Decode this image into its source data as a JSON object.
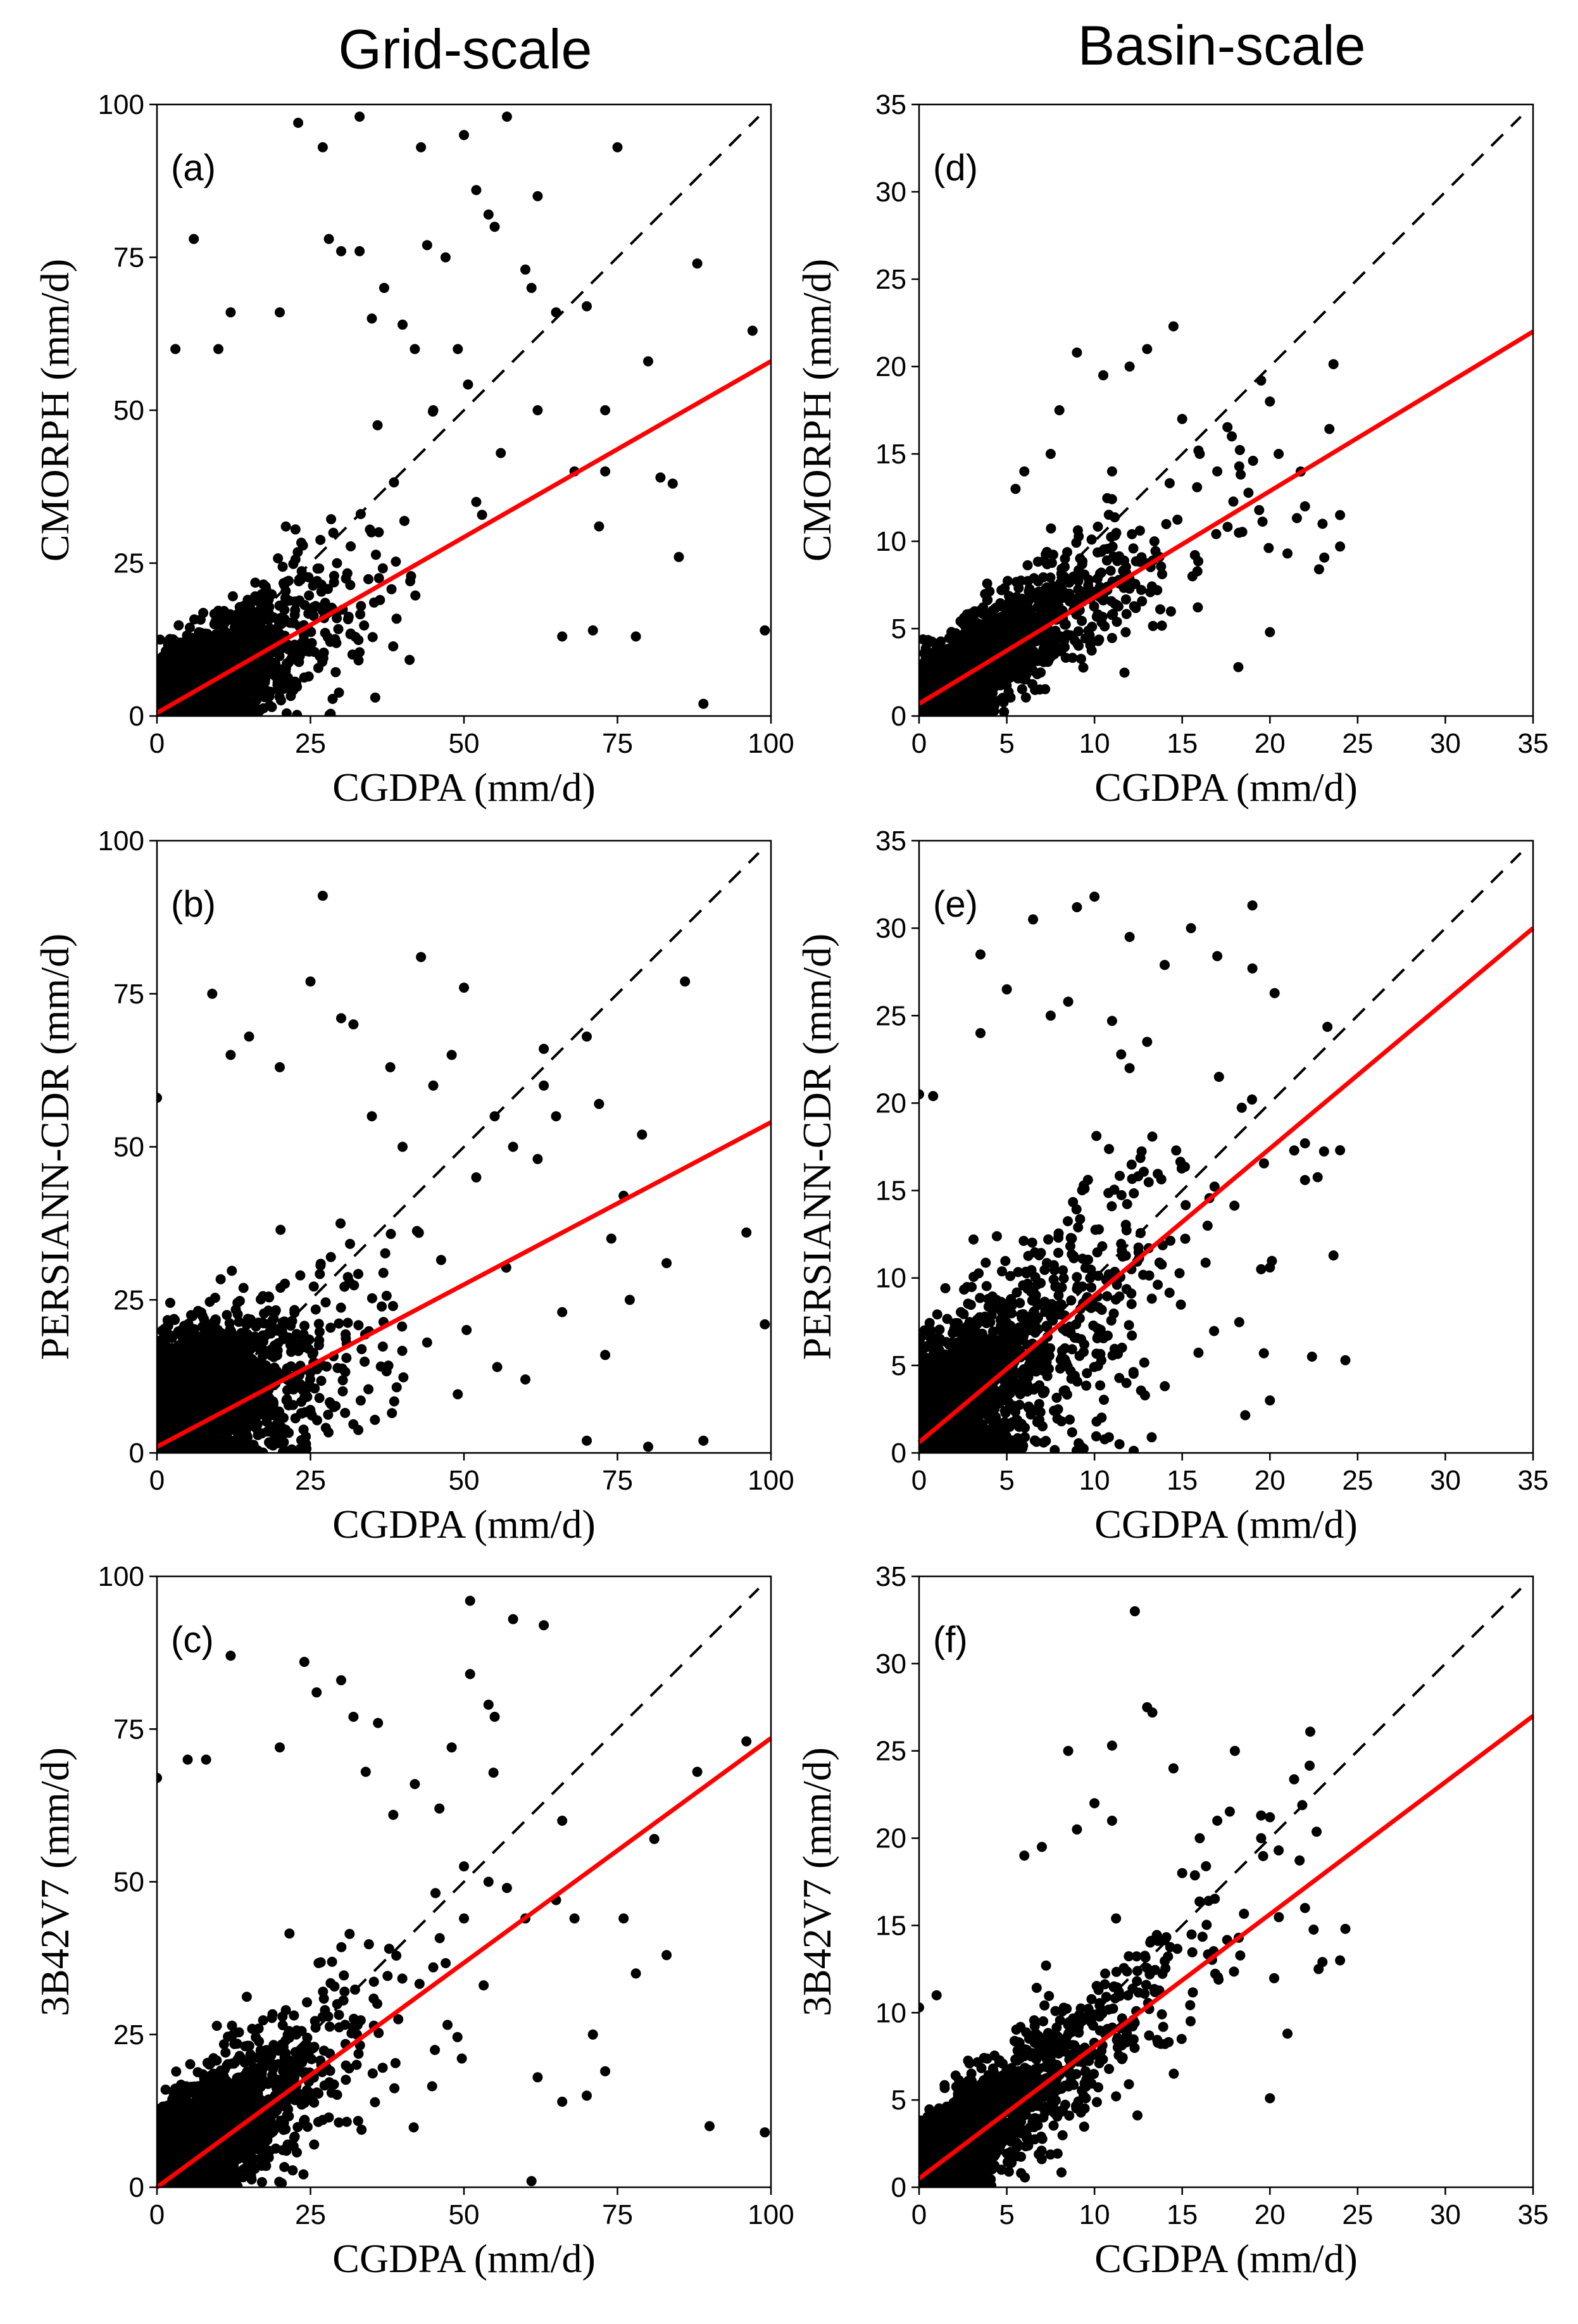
{
  "column_titles": {
    "left": "Grid-scale",
    "right": "Basin-scale"
  },
  "colors": {
    "points": "#000000",
    "fit_line": "#ff0000",
    "one_to_one": "#000000"
  },
  "chart_data": [
    {
      "id": "a",
      "type": "scatter",
      "panel_label": "(a)",
      "scale": "Grid-scale",
      "xlabel": "CGDPA (mm/d)",
      "ylabel": "CMORPH (mm/d)",
      "xlim": [
        0,
        100
      ],
      "ylim": [
        0,
        100
      ],
      "xticks": [
        0,
        25,
        50,
        75,
        100
      ],
      "yticks": [
        0,
        25,
        50,
        75,
        100
      ],
      "one_to_one_line": [
        [
          0,
          0
        ],
        [
          100,
          100
        ]
      ],
      "fit_line": [
        [
          0,
          0.5
        ],
        [
          100,
          58
        ]
      ],
      "cloud": {
        "n": 2600,
        "x_scale": 7.5,
        "x_max": 60,
        "slope": 0.58,
        "intercept": 0.5,
        "noise": 8.0
      },
      "outliers": [
        [
          23,
          97
        ],
        [
          33,
          98
        ],
        [
          50,
          95
        ],
        [
          57,
          98
        ],
        [
          75,
          93
        ],
        [
          27,
          93
        ],
        [
          43,
          93
        ],
        [
          52,
          86
        ],
        [
          54,
          82
        ],
        [
          55,
          80
        ],
        [
          62,
          85
        ],
        [
          88,
          74
        ],
        [
          97,
          63
        ],
        [
          99,
          14
        ],
        [
          89,
          2
        ],
        [
          72,
          31
        ],
        [
          73,
          40
        ],
        [
          80,
          58
        ],
        [
          82,
          39
        ],
        [
          84,
          38
        ],
        [
          60,
          73
        ],
        [
          65,
          66
        ],
        [
          70,
          67
        ],
        [
          44,
          77
        ],
        [
          28,
          78
        ],
        [
          30,
          76
        ],
        [
          33,
          76
        ],
        [
          47,
          75
        ],
        [
          6,
          78
        ],
        [
          12,
          66
        ],
        [
          20,
          66
        ],
        [
          40,
          64
        ],
        [
          35,
          65
        ],
        [
          66,
          13
        ],
        [
          71,
          14
        ],
        [
          78,
          13
        ],
        [
          85,
          26
        ],
        [
          61,
          70
        ],
        [
          37,
          70
        ],
        [
          42,
          60
        ],
        [
          49,
          60
        ],
        [
          56,
          43
        ],
        [
          62,
          50
        ],
        [
          68,
          40
        ],
        [
          73,
          50
        ],
        [
          10,
          60
        ],
        [
          3,
          60
        ],
        [
          45,
          50
        ],
        [
          52,
          35
        ]
      ]
    },
    {
      "id": "b",
      "type": "scatter",
      "panel_label": "(b)",
      "scale": "Grid-scale",
      "xlabel": "CGDPA (mm/d)",
      "ylabel": "PERSIANN-CDR (mm/d)",
      "xlim": [
        0,
        100
      ],
      "ylim": [
        0,
        100
      ],
      "xticks": [
        0,
        25,
        50,
        75,
        100
      ],
      "yticks": [
        0,
        25,
        50,
        75,
        100
      ],
      "one_to_one_line": [
        [
          0,
          0
        ],
        [
          100,
          100
        ]
      ],
      "fit_line": [
        [
          0,
          1
        ],
        [
          100,
          54
        ]
      ],
      "cloud": {
        "n": 2600,
        "x_scale": 7.5,
        "x_max": 60,
        "slope": 0.25,
        "intercept": 8.0,
        "noise": 9.0
      },
      "outliers": [
        [
          27,
          91
        ],
        [
          43,
          81
        ],
        [
          50,
          76
        ],
        [
          70,
          68
        ],
        [
          86,
          77
        ],
        [
          96,
          36
        ],
        [
          99,
          21
        ],
        [
          89,
          2
        ],
        [
          80,
          1
        ],
        [
          70,
          2
        ],
        [
          63,
          66
        ],
        [
          65,
          55
        ],
        [
          63,
          60
        ],
        [
          72,
          57
        ],
        [
          74,
          35
        ],
        [
          79,
          52
        ],
        [
          83,
          31
        ],
        [
          60,
          12
        ],
        [
          66,
          23
        ],
        [
          73,
          16
        ],
        [
          76,
          42
        ],
        [
          77,
          25
        ],
        [
          0,
          58
        ],
        [
          9,
          75
        ],
        [
          12,
          65
        ],
        [
          15,
          68
        ],
        [
          20,
          63
        ],
        [
          25,
          77
        ],
        [
          30,
          71
        ],
        [
          32,
          70
        ],
        [
          38,
          63
        ],
        [
          45,
          60
        ],
        [
          48,
          65
        ],
        [
          55,
          55
        ],
        [
          62,
          48
        ],
        [
          58,
          50
        ],
        [
          52,
          45
        ],
        [
          40,
          50
        ],
        [
          35,
          55
        ]
      ]
    },
    {
      "id": "c",
      "type": "scatter",
      "panel_label": "(c)",
      "scale": "Grid-scale",
      "xlabel": "CGDPA (mm/d)",
      "ylabel": "3B42V7 (mm/d)",
      "xlim": [
        0,
        100
      ],
      "ylim": [
        0,
        100
      ],
      "xticks": [
        0,
        25,
        50,
        75,
        100
      ],
      "yticks": [
        0,
        25,
        50,
        75,
        100
      ],
      "one_to_one_line": [
        [
          0,
          0
        ],
        [
          100,
          100
        ]
      ],
      "fit_line": [
        [
          0,
          0
        ],
        [
          100,
          73.5
        ]
      ],
      "cloud": {
        "n": 2600,
        "x_scale": 7.5,
        "x_max": 60,
        "slope": 0.7,
        "intercept": 2.0,
        "noise": 9.0
      },
      "outliers": [
        [
          51,
          96
        ],
        [
          58,
          93
        ],
        [
          63,
          92
        ],
        [
          51,
          84
        ],
        [
          24,
          86
        ],
        [
          30,
          83
        ],
        [
          26,
          81
        ],
        [
          32,
          77
        ],
        [
          36,
          76
        ],
        [
          54,
          79
        ],
        [
          55,
          77
        ],
        [
          48,
          72
        ],
        [
          96,
          73
        ],
        [
          88,
          68
        ],
        [
          81,
          57
        ],
        [
          83,
          38
        ],
        [
          78,
          35
        ],
        [
          76,
          44
        ],
        [
          71,
          25
        ],
        [
          73,
          19
        ],
        [
          62,
          18
        ],
        [
          66,
          14
        ],
        [
          68,
          44
        ],
        [
          66,
          60
        ],
        [
          65,
          47
        ],
        [
          60,
          44
        ],
        [
          61,
          1
        ],
        [
          90,
          10
        ],
        [
          99,
          9
        ],
        [
          70,
          15
        ],
        [
          0,
          67
        ],
        [
          5,
          70
        ],
        [
          8,
          70
        ],
        [
          20,
          72
        ],
        [
          12,
          87
        ],
        [
          34,
          68
        ],
        [
          42,
          66
        ],
        [
          46,
          62
        ],
        [
          54,
          50
        ],
        [
          57,
          49
        ],
        [
          50,
          44
        ],
        [
          45,
          36
        ]
      ]
    },
    {
      "id": "d",
      "type": "scatter",
      "panel_label": "(d)",
      "scale": "Basin-scale",
      "xlabel": "CGDPA (mm/d)",
      "ylabel": "CMORPH (mm/d)",
      "xlim": [
        0,
        35
      ],
      "ylim": [
        0,
        35
      ],
      "xticks": [
        0,
        5,
        10,
        15,
        20,
        25,
        30,
        35
      ],
      "yticks": [
        0,
        5,
        10,
        15,
        20,
        25,
        30,
        35
      ],
      "one_to_one_line": [
        [
          0,
          0
        ],
        [
          35,
          35
        ]
      ],
      "fit_line": [
        [
          0,
          0.7
        ],
        [
          35,
          22
        ]
      ],
      "cloud": {
        "n": 1900,
        "x_scale": 3.8,
        "x_max": 24,
        "slope": 0.62,
        "intercept": 0.7,
        "noise": 2.3
      },
      "outliers": [
        [
          9,
          20.8
        ],
        [
          14.5,
          22.3
        ],
        [
          13,
          21
        ],
        [
          12,
          20
        ],
        [
          10.5,
          19.5
        ],
        [
          8,
          17.5
        ],
        [
          19.5,
          19.2
        ],
        [
          20,
          18
        ],
        [
          20.5,
          15
        ],
        [
          22,
          12
        ],
        [
          23,
          11
        ],
        [
          24,
          11.5
        ],
        [
          24,
          9.7
        ],
        [
          21,
          9.3
        ],
        [
          22.8,
          8.4
        ],
        [
          18.2,
          2.8
        ],
        [
          20,
          4.8
        ],
        [
          17,
          14
        ],
        [
          16,
          15
        ],
        [
          15,
          17
        ],
        [
          7.5,
          15
        ],
        [
          6,
          14
        ],
        [
          11,
          14
        ],
        [
          5.5,
          13
        ]
      ]
    },
    {
      "id": "e",
      "type": "scatter",
      "panel_label": "(e)",
      "scale": "Basin-scale",
      "xlabel": "CGDPA (mm/d)",
      "ylabel": "PERSIANN-CDR (mm/d)",
      "xlim": [
        0,
        35
      ],
      "ylim": [
        0,
        35
      ],
      "xticks": [
        0,
        5,
        10,
        15,
        20,
        25,
        30,
        35
      ],
      "yticks": [
        0,
        5,
        10,
        15,
        20,
        25,
        30,
        35
      ],
      "one_to_one_line": [
        [
          0,
          0
        ],
        [
          35,
          35
        ]
      ],
      "fit_line": [
        [
          0,
          0.6
        ],
        [
          35,
          30
        ]
      ],
      "cloud": {
        "n": 1900,
        "x_scale": 3.5,
        "x_max": 24,
        "slope": 0.75,
        "intercept": 1.0,
        "noise": 4.5
      },
      "outliers": [
        [
          10,
          31.8
        ],
        [
          9,
          31.2
        ],
        [
          6.5,
          30.5
        ],
        [
          12,
          29.5
        ],
        [
          15.5,
          30
        ],
        [
          19,
          31.3
        ],
        [
          19,
          27.7
        ],
        [
          17,
          28.4
        ],
        [
          14,
          27.9
        ],
        [
          3.5,
          28.5
        ],
        [
          5,
          26.5
        ],
        [
          0,
          20.5
        ],
        [
          0.8,
          20.4
        ],
        [
          3.5,
          24
        ],
        [
          22,
          17.7
        ],
        [
          22,
          15.6
        ],
        [
          24,
          17.3
        ],
        [
          22.4,
          5.5
        ],
        [
          24.3,
          5.3
        ],
        [
          20,
          3
        ],
        [
          20,
          10.6
        ],
        [
          19.5,
          10.5
        ],
        [
          13,
          23.5
        ],
        [
          12,
          22
        ],
        [
          11,
          24.7
        ],
        [
          8.5,
          25.8
        ],
        [
          7.5,
          25
        ]
      ]
    },
    {
      "id": "f",
      "type": "scatter",
      "panel_label": "(f)",
      "scale": "Basin-scale",
      "xlabel": "CGDPA (mm/d)",
      "ylabel": "3B42V7 (mm/d)",
      "xlim": [
        0,
        35
      ],
      "ylim": [
        0,
        35
      ],
      "xticks": [
        0,
        5,
        10,
        15,
        20,
        25,
        30,
        35
      ],
      "yticks": [
        0,
        5,
        10,
        15,
        20,
        25,
        30,
        35
      ],
      "one_to_one_line": [
        [
          0,
          0
        ],
        [
          35,
          35
        ]
      ],
      "fit_line": [
        [
          0,
          0.5
        ],
        [
          35,
          27
        ]
      ],
      "cloud": {
        "n": 1900,
        "x_scale": 3.8,
        "x_max": 24,
        "slope": 0.78,
        "intercept": 0.7,
        "noise": 2.6
      },
      "outliers": [
        [
          12.3,
          33
        ],
        [
          13,
          27.5
        ],
        [
          13.3,
          27.2
        ],
        [
          8.5,
          25
        ],
        [
          11,
          25.3
        ],
        [
          22.3,
          26.1
        ],
        [
          14.5,
          24
        ],
        [
          18,
          25
        ],
        [
          16,
          20
        ],
        [
          17,
          21
        ],
        [
          19.5,
          21.3
        ],
        [
          20,
          21.2
        ],
        [
          20.5,
          19.3
        ],
        [
          24.3,
          14.8
        ],
        [
          24,
          13
        ],
        [
          22,
          16
        ],
        [
          20,
          5.1
        ],
        [
          21,
          8.8
        ],
        [
          19.5,
          20
        ],
        [
          6,
          19
        ],
        [
          7,
          19.5
        ],
        [
          9,
          20.5
        ],
        [
          10,
          22
        ],
        [
          11,
          21
        ],
        [
          15,
          18
        ],
        [
          0,
          10.3
        ],
        [
          1,
          11
        ]
      ]
    }
  ]
}
